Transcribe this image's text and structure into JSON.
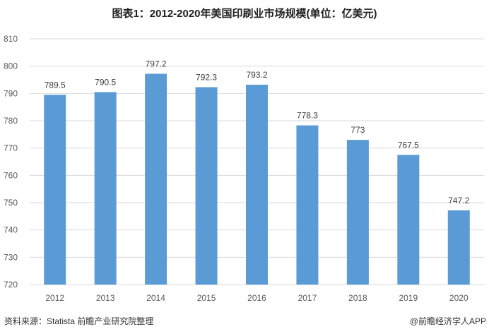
{
  "chart_data": {
    "type": "bar",
    "title": "图表1：2012-2020年美国印刷业市场规模(单位：亿美元)",
    "categories": [
      "2012",
      "2013",
      "2014",
      "2015",
      "2016",
      "2017",
      "2018",
      "2019",
      "2020"
    ],
    "values": [
      789.5,
      790.5,
      797.2,
      792.3,
      793.2,
      778.3,
      773,
      767.5,
      747.2
    ],
    "data_labels": [
      "789.5",
      "790.5",
      "797.2",
      "792.3",
      "793.2",
      "778.3",
      "773",
      "767.5",
      "747.2"
    ],
    "ylim": [
      720,
      810
    ],
    "yticks": [
      "720",
      "730",
      "740",
      "750",
      "760",
      "770",
      "780",
      "790",
      "800",
      "810"
    ],
    "grid": true,
    "bar_color": "#5b9bd5",
    "xlabel": "",
    "ylabel": ""
  },
  "footer": {
    "source": "资料来源：Statista 前瞻产业研究院整理",
    "brand": "@前瞻经济学人APP"
  }
}
